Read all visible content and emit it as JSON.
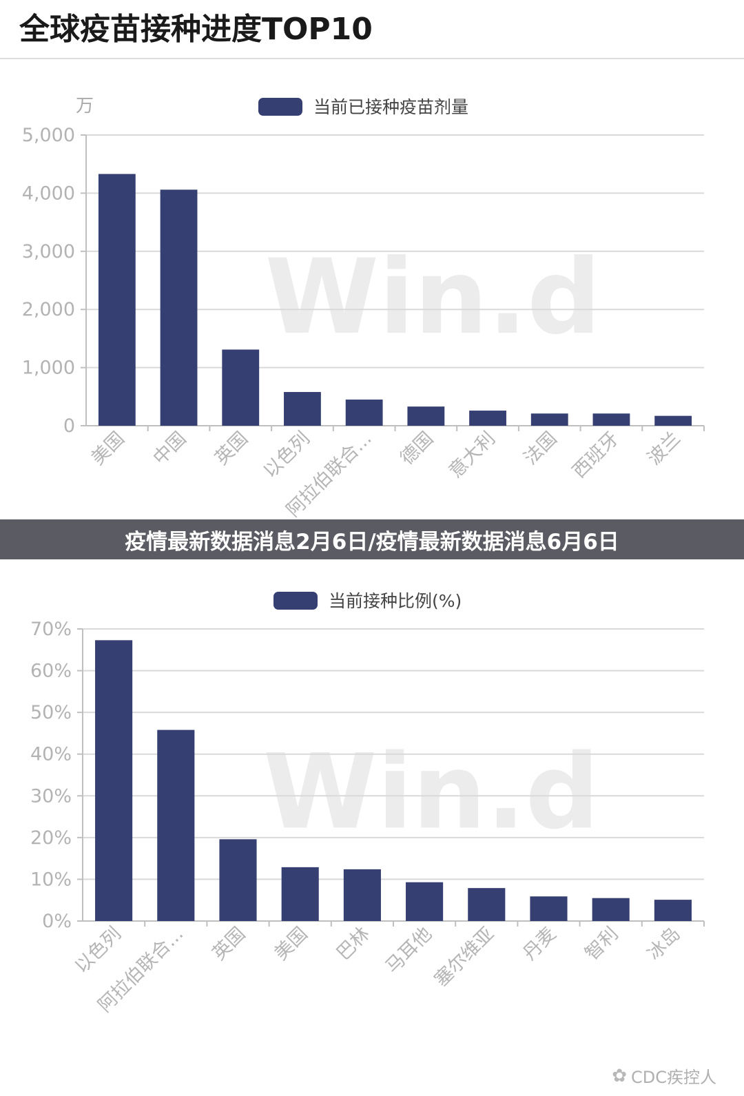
{
  "page": {
    "title": "全球疫苗接种进度TOP10",
    "banner": "疫情最新数据消息2月6日/疫情最新数据消息6月6日",
    "credit": "CDC疾控人",
    "wechat_icon": "wechat-icon"
  },
  "colors": {
    "bar": "#363f72",
    "grid": "#d9d9d9",
    "axis": "#bfbfbf"
  },
  "chart_data": [
    {
      "type": "bar",
      "unit": "万",
      "legend": "当前已接种疫苗剂量",
      "watermark": "Win.d",
      "categories": [
        "美国",
        "中国",
        "英国",
        "以色列",
        "阿拉伯联合...",
        "德国",
        "意大利",
        "法国",
        "西班牙",
        "波兰"
      ],
      "values": [
        4330,
        4060,
        1310,
        580,
        450,
        330,
        260,
        210,
        210,
        170
      ],
      "ylim": [
        0,
        5000
      ],
      "yticks": [
        0,
        1000,
        2000,
        3000,
        4000,
        5000
      ],
      "ytick_labels": [
        "0",
        "1,000",
        "2,000",
        "3,000",
        "4,000",
        "5,000"
      ],
      "grid": true,
      "legend_position": "top"
    },
    {
      "type": "bar",
      "legend": "当前接种比例(%)",
      "watermark": "Win.d",
      "categories": [
        "以色列",
        "阿拉伯联合...",
        "英国",
        "美国",
        "巴林",
        "马耳他",
        "塞尔维亚",
        "丹麦",
        "智利",
        "冰岛"
      ],
      "values": [
        67.3,
        45.8,
        19.6,
        12.9,
        12.4,
        9.3,
        7.9,
        5.9,
        5.5,
        5.1
      ],
      "ylim": [
        0,
        70
      ],
      "yticks": [
        0,
        10,
        20,
        30,
        40,
        50,
        60,
        70
      ],
      "ytick_labels": [
        "0%",
        "10%",
        "20%",
        "30%",
        "40%",
        "50%",
        "60%",
        "70%"
      ],
      "grid": true,
      "legend_position": "top"
    }
  ]
}
